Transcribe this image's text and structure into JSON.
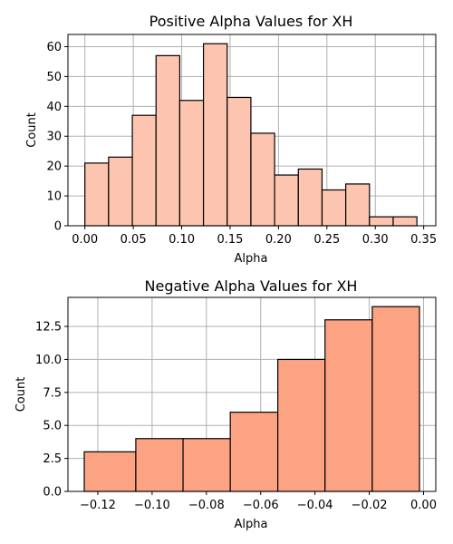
{
  "chart_data": [
    {
      "type": "bar",
      "title": "Positive Alpha Values for XH",
      "xlabel": "Alpha",
      "ylabel": "Count",
      "color": "#fdc5b0",
      "xlim": [
        -0.0175,
        0.3625
      ],
      "ylim": [
        0,
        64.1
      ],
      "xticks": [
        0.0,
        0.05,
        0.1,
        0.15,
        0.2,
        0.25,
        0.3,
        0.35
      ],
      "xtick_labels": [
        "0.00",
        "0.05",
        "0.10",
        "0.15",
        "0.20",
        "0.25",
        "0.30",
        "0.35"
      ],
      "yticks": [
        0,
        10,
        20,
        30,
        40,
        50,
        60
      ],
      "ytick_labels": [
        "0",
        "10",
        "20",
        "30",
        "40",
        "50",
        "60"
      ],
      "grid": true,
      "bin_edges": [
        0.0,
        0.0245,
        0.049,
        0.0735,
        0.098,
        0.1225,
        0.147,
        0.1715,
        0.196,
        0.2205,
        0.245,
        0.2695,
        0.294,
        0.3185,
        0.343
      ],
      "values": [
        21,
        23,
        37,
        57,
        42,
        61,
        43,
        31,
        17,
        19,
        12,
        14,
        3,
        3
      ]
    },
    {
      "type": "bar",
      "title": "Negative Alpha Values for XH",
      "xlabel": "Alpha",
      "ylabel": "Count",
      "color": "#fca384",
      "xlim": [
        -0.131,
        0.0045
      ],
      "ylim": [
        0,
        14.7
      ],
      "xticks": [
        -0.12,
        -0.1,
        -0.08,
        -0.06,
        -0.04,
        -0.02,
        0.0
      ],
      "xtick_labels": [
        "−0.12",
        "−0.10",
        "−0.08",
        "−0.06",
        "−0.04",
        "−0.02",
        "0.00"
      ],
      "yticks": [
        0,
        2.5,
        5.0,
        7.5,
        10.0,
        12.5
      ],
      "ytick_labels": [
        "0.0",
        "2.5",
        "5.0",
        "7.5",
        "10.0",
        "12.5"
      ],
      "grid": true,
      "bin_edges": [
        -0.125,
        -0.106,
        -0.0886,
        -0.0712,
        -0.0537,
        -0.0363,
        -0.0189,
        -0.0015
      ],
      "values": [
        3,
        4,
        4,
        6,
        10,
        13,
        14
      ]
    }
  ]
}
